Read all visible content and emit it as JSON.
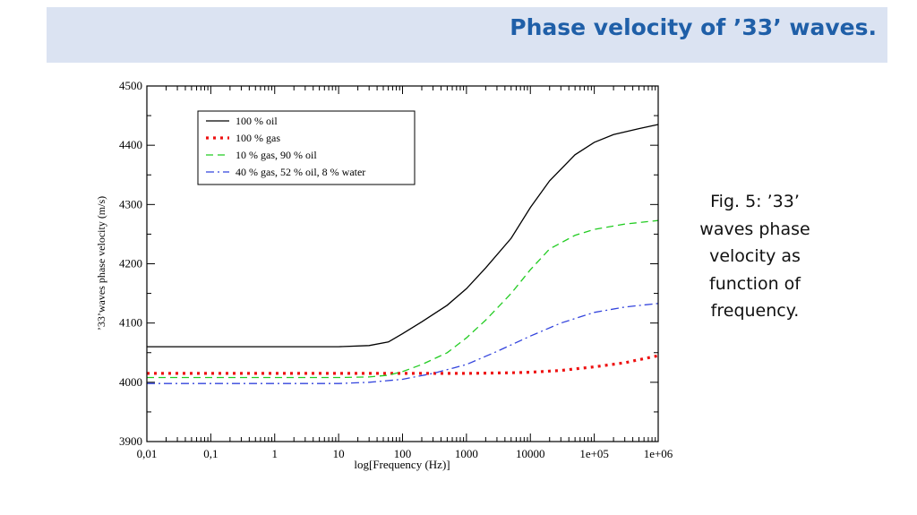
{
  "slide": {
    "title": "Phase velocity of ’33’ waves.",
    "caption": "Fig. 5: ’33’ waves phase velocity as function of frequency."
  },
  "chart_data": {
    "type": "line",
    "xlabel": "log[Frequency (Hz)]",
    "ylabel": "’33’waves phase velocity (m/s)",
    "xscale": "log",
    "xlim": [
      0.01,
      1000000
    ],
    "ylim": [
      3900,
      4500
    ],
    "x_ticks": [
      0.01,
      0.1,
      1,
      10,
      100,
      1000,
      10000,
      100000,
      1000000
    ],
    "x_tick_labels": [
      "0,01",
      "0,1",
      "1",
      "10",
      "100",
      "1000",
      "10000",
      "1e+05",
      "1e+06"
    ],
    "y_ticks": [
      3900,
      4000,
      4100,
      4200,
      4300,
      4400,
      4500
    ],
    "y_tick_labels": [
      "3900",
      "4000",
      "4100",
      "4200",
      "4300",
      "4400",
      "4500"
    ],
    "grid": false,
    "legend_position": "top-left",
    "series": [
      {
        "name": "100 % oil",
        "color": "#000000",
        "style": "solid",
        "points": [
          [
            0.01,
            4060
          ],
          [
            1,
            4060
          ],
          [
            10,
            4060
          ],
          [
            30,
            4062
          ],
          [
            60,
            4068
          ],
          [
            100,
            4082
          ],
          [
            200,
            4102
          ],
          [
            500,
            4130
          ],
          [
            1000,
            4158
          ],
          [
            2000,
            4193
          ],
          [
            5000,
            4243
          ],
          [
            10000,
            4295
          ],
          [
            20000,
            4340
          ],
          [
            50000,
            4384
          ],
          [
            100000,
            4405
          ],
          [
            200000,
            4418
          ],
          [
            500000,
            4428
          ],
          [
            1000000,
            4435
          ]
        ]
      },
      {
        "name": "100 % gas",
        "color": "#ee1111",
        "style": "dotted",
        "points": [
          [
            0.01,
            4015
          ],
          [
            1,
            4015
          ],
          [
            10,
            4015
          ],
          [
            100,
            4015
          ],
          [
            1000,
            4015
          ],
          [
            5000,
            4016
          ],
          [
            10000,
            4017
          ],
          [
            30000,
            4020
          ],
          [
            100000,
            4026
          ],
          [
            300000,
            4033
          ],
          [
            1000000,
            4045
          ]
        ]
      },
      {
        "name": "10 % gas, 90 % oil",
        "color": "#22cc22",
        "style": "dashed",
        "points": [
          [
            0.01,
            4008
          ],
          [
            10,
            4008
          ],
          [
            30,
            4009
          ],
          [
            60,
            4012
          ],
          [
            100,
            4018
          ],
          [
            200,
            4030
          ],
          [
            500,
            4050
          ],
          [
            1000,
            4075
          ],
          [
            2000,
            4105
          ],
          [
            5000,
            4150
          ],
          [
            10000,
            4190
          ],
          [
            20000,
            4225
          ],
          [
            50000,
            4248
          ],
          [
            100000,
            4258
          ],
          [
            300000,
            4267
          ],
          [
            1000000,
            4273
          ]
        ]
      },
      {
        "name": "40 % gas, 52 % oil, 8 % water",
        "color": "#3344dd",
        "style": "dashdot",
        "points": [
          [
            0.01,
            3998
          ],
          [
            1,
            3998
          ],
          [
            10,
            3998
          ],
          [
            30,
            4000
          ],
          [
            100,
            4005
          ],
          [
            300,
            4015
          ],
          [
            1000,
            4030
          ],
          [
            3000,
            4052
          ],
          [
            10000,
            4078
          ],
          [
            30000,
            4100
          ],
          [
            100000,
            4118
          ],
          [
            300000,
            4127
          ],
          [
            1000000,
            4133
          ]
        ]
      }
    ]
  }
}
